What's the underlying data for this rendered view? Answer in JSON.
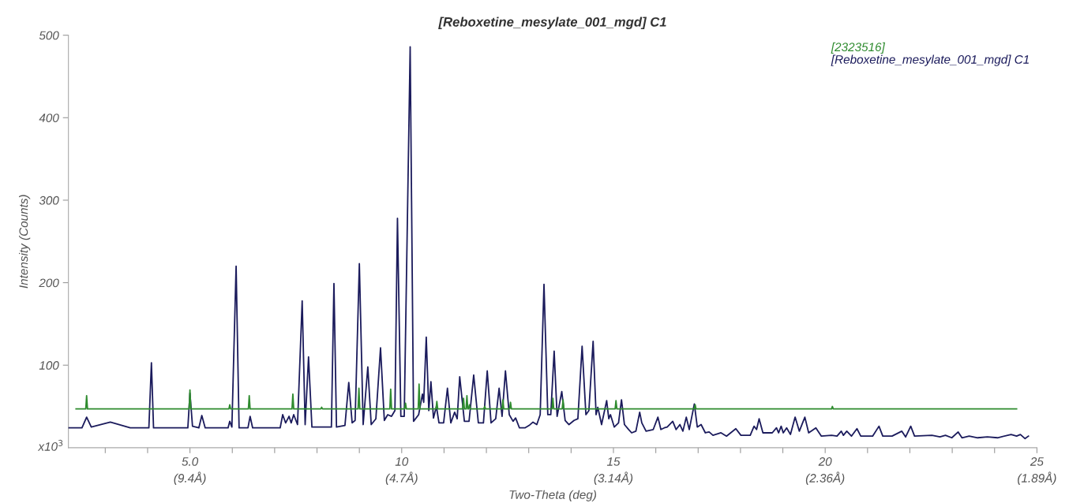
{
  "chart_data": {
    "type": "line",
    "title": "[Reboxetine_mesylate_001_mgd] C1",
    "xlabel": "Two-Theta (deg)",
    "ylabel": "Intensity (Counts)",
    "annotations": [
      "x10$^{3}$",
      "(9.4Å)",
      "(4.7Å)",
      "(3.14Å)",
      "(2.36Å)",
      "(1.89Å)"
    ],
    "xlim": [
      2.13,
      25.0
    ],
    "ylim": [
      0,
      500
    ],
    "xticks": [
      {
        "value": 3,
        "label": null
      },
      {
        "value": 4,
        "label": null
      },
      {
        "value": 5,
        "label": "5.0"
      },
      {
        "value": 6,
        "label": null
      },
      {
        "value": 7,
        "label": null
      },
      {
        "value": 8,
        "label": null
      },
      {
        "value": 9,
        "label": null
      },
      10,
      {
        "value": 11,
        "label": null
      },
      {
        "value": 12,
        "label": null
      },
      {
        "value": 13,
        "label": null
      },
      {
        "value": 14,
        "label": null
      },
      15,
      {
        "value": 16,
        "label": null
      },
      {
        "value": 17,
        "label": null
      },
      {
        "value": 18,
        "label": null
      },
      {
        "value": 19,
        "label": null
      },
      20,
      {
        "value": 21,
        "label": null
      },
      {
        "value": 22,
        "label": null
      },
      {
        "value": 23,
        "label": null
      },
      {
        "value": 24,
        "label": null
      },
      25
    ],
    "yticks": [
      100,
      200,
      300,
      400,
      500
    ],
    "grid": false,
    "legend": "top right",
    "marker": "none",
    "line_style": "solid",
    "series": [
      {
        "name": "[2323516]",
        "color": "#2e8b2e",
        "x": [
          2.31,
          2.54,
          2.56,
          2.58,
          4.98,
          5.0,
          5.02,
          5.92,
          5.94,
          5.96,
          6.38,
          6.4,
          6.42,
          7.41,
          7.43,
          7.45,
          8.09,
          8.11,
          8.13,
          8.97,
          8.99,
          9.01,
          9.72,
          9.74,
          9.76,
          10.07,
          10.09,
          10.11,
          10.39,
          10.41,
          10.43,
          10.81,
          10.83,
          10.85,
          11.44,
          11.46,
          11.48,
          11.52,
          11.54,
          11.56,
          11.58,
          11.6,
          11.62,
          11.94,
          11.96,
          11.98,
          12.37,
          12.39,
          12.41,
          12.55,
          12.57,
          12.59,
          13.55,
          13.57,
          13.59,
          13.79,
          13.81,
          13.83,
          15.04,
          15.06,
          15.08,
          16.91,
          16.93,
          16.95,
          20.15,
          20.17,
          20.19,
          24.52
        ],
        "values": [
          47,
          47,
          63,
          47,
          47,
          70,
          47,
          47,
          52,
          47,
          47,
          63,
          47,
          47,
          65,
          47,
          47,
          49,
          47,
          47,
          72,
          47,
          47,
          71,
          47,
          47,
          54,
          47,
          47,
          77,
          47,
          47,
          56,
          47,
          47,
          60,
          47,
          47,
          63,
          47,
          47,
          52,
          47,
          47,
          50,
          47,
          47,
          58,
          47,
          47,
          55,
          47,
          47,
          60,
          47,
          47,
          58,
          47,
          47,
          57,
          47,
          47,
          52,
          47,
          47,
          50,
          47,
          47
        ]
      },
      {
        "name": "[Reboxetine_mesylate_001_mgd] C1",
        "color": "#1b1b5c",
        "x": [
          2.13,
          2.45,
          2.56,
          2.67,
          3.12,
          3.59,
          4.03,
          4.09,
          4.14,
          4.95,
          5.0,
          5.06,
          5.21,
          5.28,
          5.36,
          5.9,
          5.94,
          5.99,
          6.09,
          6.16,
          6.37,
          6.42,
          6.48,
          7.13,
          7.19,
          7.26,
          7.34,
          7.39,
          7.45,
          7.54,
          7.65,
          7.72,
          7.8,
          7.88,
          8.34,
          8.4,
          8.46,
          8.66,
          8.75,
          8.83,
          8.9,
          9.0,
          9.09,
          9.2,
          9.28,
          9.39,
          9.5,
          9.59,
          9.67,
          9.76,
          9.84,
          9.9,
          9.98,
          10.06,
          10.2,
          10.28,
          10.4,
          10.49,
          10.52,
          10.58,
          10.64,
          10.69,
          10.75,
          10.82,
          10.88,
          10.99,
          11.08,
          11.16,
          11.25,
          11.31,
          11.37,
          11.48,
          11.59,
          11.7,
          11.81,
          11.93,
          12.02,
          12.11,
          12.22,
          12.3,
          12.37,
          12.45,
          12.54,
          12.63,
          12.69,
          12.78,
          12.91,
          13.01,
          13.1,
          13.19,
          13.27,
          13.36,
          13.45,
          13.52,
          13.6,
          13.67,
          13.78,
          13.86,
          13.95,
          14.07,
          14.16,
          14.26,
          14.35,
          14.42,
          14.52,
          14.59,
          14.63,
          14.72,
          14.84,
          14.89,
          14.93,
          15.02,
          15.12,
          15.19,
          15.26,
          15.36,
          15.43,
          15.53,
          15.62,
          15.67,
          15.77,
          15.94,
          16.05,
          16.12,
          16.2,
          16.27,
          16.4,
          16.48,
          16.57,
          16.64,
          16.72,
          16.79,
          16.91,
          16.98,
          17.07,
          17.17,
          17.26,
          17.35,
          17.54,
          17.67,
          17.89,
          18.01,
          18.23,
          18.32,
          18.38,
          18.44,
          18.53,
          18.75,
          18.85,
          18.9,
          18.96,
          19.01,
          19.09,
          19.18,
          19.29,
          19.39,
          19.52,
          19.61,
          19.78,
          19.91,
          20.15,
          20.28,
          20.38,
          20.43,
          20.51,
          20.62,
          20.75,
          20.84,
          21.12,
          21.27,
          21.36,
          21.58,
          21.81,
          21.9,
          22.02,
          22.11,
          22.52,
          22.71,
          22.84,
          22.99,
          23.14,
          23.23,
          23.4,
          23.6,
          23.83,
          24.07,
          24.39,
          24.52,
          24.61,
          24.72,
          24.8
        ],
        "values": [
          24,
          24,
          37,
          25,
          31,
          24,
          24,
          103,
          24,
          24,
          66,
          26,
          24,
          39,
          24,
          24,
          32,
          25,
          220,
          24,
          24,
          38,
          24,
          24,
          40,
          30,
          38,
          30,
          40,
          28,
          178,
          28,
          110,
          25,
          25,
          199,
          25,
          27,
          79,
          30,
          33,
          223,
          28,
          98,
          28,
          35,
          121,
          33,
          40,
          38,
          45,
          278,
          38,
          38,
          486,
          32,
          40,
          65,
          55,
          134,
          45,
          80,
          36,
          50,
          30,
          30,
          72,
          30,
          43,
          35,
          86,
          32,
          32,
          88,
          30,
          30,
          93,
          30,
          35,
          72,
          38,
          93,
          40,
          32,
          36,
          24,
          24,
          27,
          31,
          28,
          40,
          198,
          40,
          40,
          117,
          38,
          68,
          33,
          28,
          33,
          35,
          123,
          40,
          45,
          129,
          40,
          49,
          28,
          57,
          35,
          40,
          25,
          30,
          58,
          28,
          22,
          18,
          20,
          43,
          30,
          20,
          22,
          37,
          22,
          24,
          25,
          32,
          22,
          28,
          20,
          37,
          22,
          53,
          25,
          28,
          18,
          19,
          15,
          18,
          14,
          23,
          15,
          15,
          26,
          22,
          35,
          18,
          18,
          24,
          18,
          26,
          18,
          24,
          16,
          37,
          20,
          37,
          18,
          24,
          14,
          15,
          14,
          20,
          15,
          20,
          14,
          23,
          14,
          14,
          26,
          14,
          14,
          20,
          13,
          26,
          14,
          15,
          13,
          15,
          12,
          19,
          12,
          14,
          12,
          13,
          12,
          16,
          14,
          16,
          11,
          14
        ]
      }
    ]
  }
}
